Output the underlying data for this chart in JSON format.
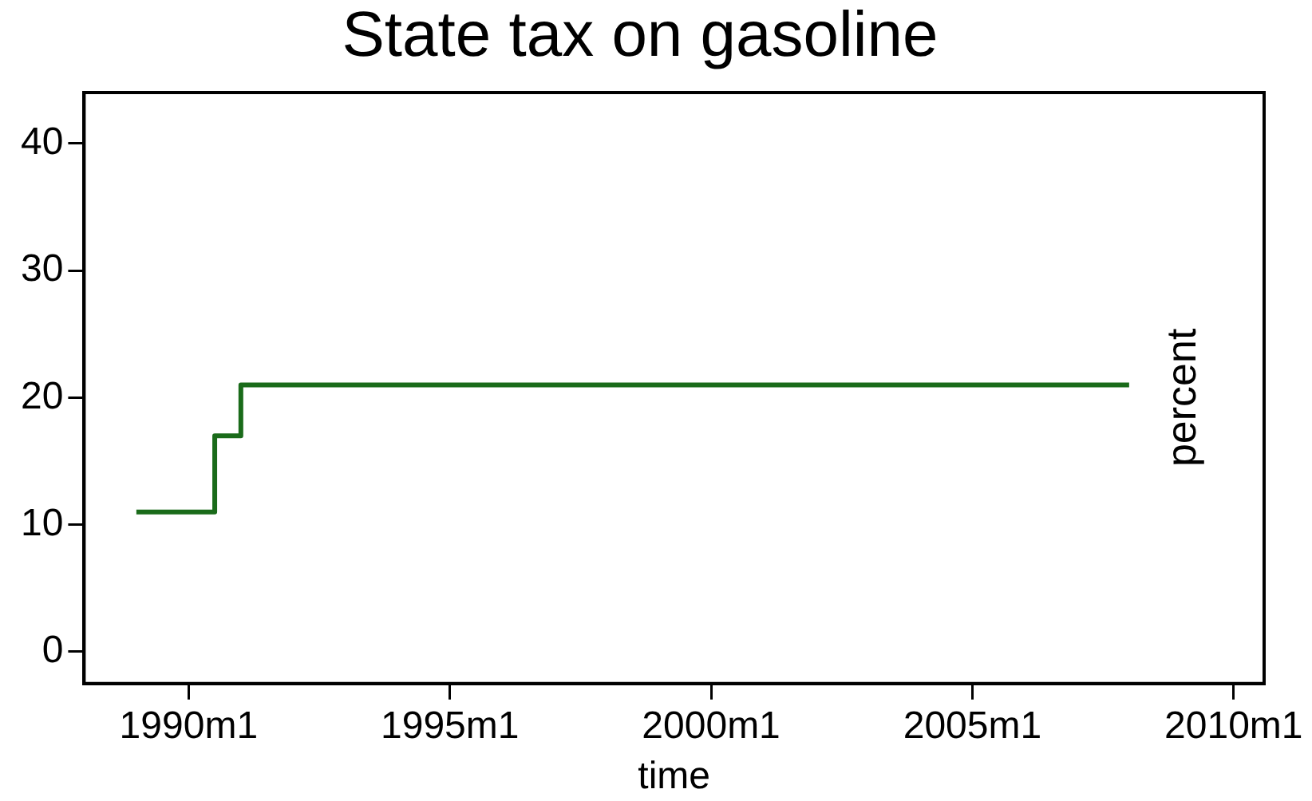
{
  "chart_data": {
    "type": "step",
    "title": "State tax on gasoline",
    "xlabel": "time",
    "x": [
      "1989-01",
      "1990-07",
      "1991-01",
      "2008-01"
    ],
    "series": [
      {
        "color": "#1a6b1a",
        "values": [
          11,
          17,
          21,
          21
        ]
      }
    ],
    "xlim": [
      "1988-01",
      "2010-08"
    ],
    "xticks": [
      {
        "value": "1990-01",
        "label": "1990m1"
      },
      {
        "value": "1995-01",
        "label": "1995m1"
      },
      {
        "value": "2000-01",
        "label": "2000m1"
      },
      {
        "value": "2005-01",
        "label": "2005m1"
      },
      {
        "value": "2010-01",
        "label": "2010m1"
      }
    ],
    "ylim": [
      -2.5,
      44
    ],
    "yticks": [
      0,
      10,
      20,
      30,
      40
    ],
    "annotations": [
      "percent"
    ],
    "grid": false,
    "legend": false,
    "marker": "none",
    "line_style": "solid"
  }
}
